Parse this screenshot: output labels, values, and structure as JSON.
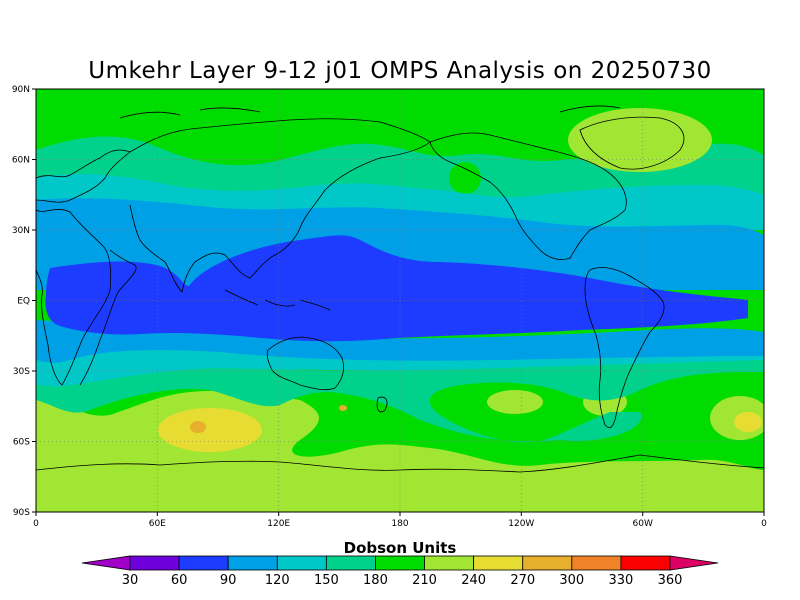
{
  "title": "Umkehr Layer 9-12 j01 OMPS Analysis on 20250730",
  "lat_labels": [
    "90N",
    "60N",
    "30N",
    "EQ",
    "30S",
    "60S",
    "90S"
  ],
  "lon_labels": [
    "0",
    "60E",
    "120E",
    "180",
    "120W",
    "60W",
    "0"
  ],
  "colorbar": {
    "title": "Dobson Units",
    "levels": [
      "30",
      "60",
      "90",
      "120",
      "150",
      "180",
      "210",
      "240",
      "270",
      "300",
      "330",
      "360"
    ],
    "colors": [
      "#a000c8",
      "#6e00dc",
      "#1e3cff",
      "#00a0e6",
      "#00c8c8",
      "#00d28c",
      "#00dc00",
      "#a0e632",
      "#e6dc32",
      "#e6af2d",
      "#f08228",
      "#fa0000",
      "#dc0064"
    ]
  },
  "map": {
    "projection": "cylindrical equidistant",
    "dotted_grid": true,
    "field_colors": {
      "band_210_240": "#a0e632",
      "band_180_210": "#00dc00",
      "band_150_180": "#00d28c",
      "band_120_150": "#00c8c8",
      "band_90_120": "#00a0e6",
      "band_60_90": "#1e3cff",
      "band_240_270": "#e6dc32",
      "band_270_300": "#e6af2d"
    }
  }
}
